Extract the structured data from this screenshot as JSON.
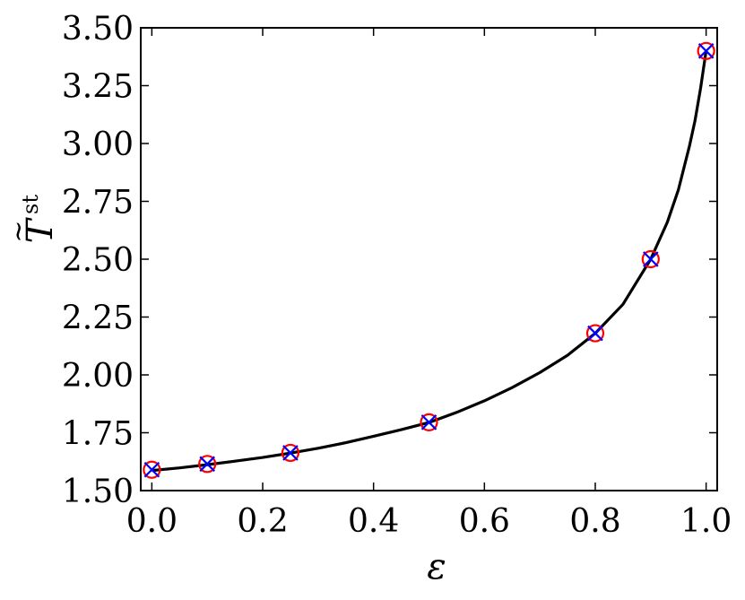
{
  "chart_data": {
    "type": "scatter",
    "xlabel": "ε",
    "ylabel_main": "T",
    "ylabel_accent": "~",
    "ylabel_superscript": "st",
    "xlim": [
      -0.02,
      1.02
    ],
    "ylim": [
      1.5,
      3.5
    ],
    "x_ticks": [
      "0.0",
      "0.2",
      "0.4",
      "0.6",
      "0.8",
      "1.0"
    ],
    "x_tick_values": [
      0.0,
      0.2,
      0.4,
      0.6,
      0.8,
      1.0
    ],
    "y_ticks": [
      "1.50",
      "1.75",
      "2.00",
      "2.25",
      "2.50",
      "2.75",
      "3.00",
      "3.25",
      "3.50"
    ],
    "y_tick_values": [
      1.5,
      1.75,
      2.0,
      2.25,
      2.5,
      2.75,
      3.0,
      3.25,
      3.5
    ],
    "grid": false,
    "ticks_direction": "in",
    "series": [
      {
        "kind": "line",
        "color": "#000000",
        "x": [
          0.0,
          0.05,
          0.1,
          0.15,
          0.2,
          0.25,
          0.3,
          0.35,
          0.4,
          0.45,
          0.5,
          0.55,
          0.6,
          0.65,
          0.7,
          0.75,
          0.8,
          0.85,
          0.9,
          0.93,
          0.95,
          0.97,
          0.98,
          0.99,
          1.0
        ],
        "values": [
          1.587,
          1.598,
          1.612,
          1.627,
          1.643,
          1.662,
          1.683,
          1.707,
          1.735,
          1.763,
          1.794,
          1.838,
          1.888,
          1.945,
          2.01,
          2.085,
          2.18,
          2.305,
          2.5,
          2.66,
          2.8,
          2.99,
          3.1,
          3.24,
          3.4
        ]
      },
      {
        "kind": "scatter",
        "marker": "circle",
        "color": "#ff0000",
        "x": [
          0.0,
          0.1,
          0.25,
          0.5,
          0.8,
          0.9,
          1.0
        ],
        "values": [
          1.59,
          1.615,
          1.663,
          1.795,
          2.18,
          2.5,
          3.4
        ]
      },
      {
        "kind": "scatter",
        "marker": "x",
        "color": "#0000ff",
        "x": [
          0.0,
          0.1,
          0.25,
          0.5,
          0.8,
          0.9,
          1.0
        ],
        "values": [
          1.59,
          1.615,
          1.663,
          1.795,
          2.18,
          2.5,
          3.4
        ]
      }
    ]
  }
}
